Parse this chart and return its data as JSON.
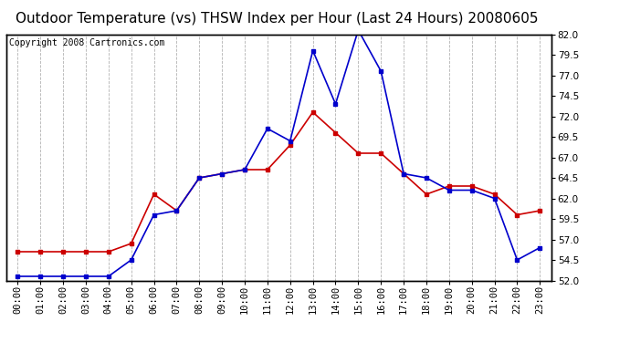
{
  "title": "Outdoor Temperature (vs) THSW Index per Hour (Last 24 Hours) 20080605",
  "copyright": "Copyright 2008 Cartronics.com",
  "hours": [
    "00:00",
    "01:00",
    "02:00",
    "03:00",
    "04:00",
    "05:00",
    "06:00",
    "07:00",
    "08:00",
    "09:00",
    "10:00",
    "11:00",
    "12:00",
    "13:00",
    "14:00",
    "15:00",
    "16:00",
    "17:00",
    "18:00",
    "19:00",
    "20:00",
    "21:00",
    "22:00",
    "23:00"
  ],
  "temp": [
    55.5,
    55.5,
    55.5,
    55.5,
    55.5,
    56.5,
    62.5,
    60.5,
    64.5,
    65.0,
    65.5,
    65.5,
    68.5,
    72.5,
    70.0,
    67.5,
    67.5,
    65.0,
    62.5,
    63.5,
    63.5,
    62.5,
    60.0,
    60.5
  ],
  "thsw": [
    52.5,
    52.5,
    52.5,
    52.5,
    52.5,
    54.5,
    60.0,
    60.5,
    64.5,
    65.0,
    65.5,
    70.5,
    69.0,
    80.0,
    73.5,
    82.5,
    77.5,
    65.0,
    64.5,
    63.0,
    63.0,
    62.0,
    54.5,
    56.0
  ],
  "ylim": [
    52.0,
    82.0
  ],
  "yticks": [
    52.0,
    54.5,
    57.0,
    59.5,
    62.0,
    64.5,
    67.0,
    69.5,
    72.0,
    74.5,
    77.0,
    79.5,
    82.0
  ],
  "bg_color": "#ffffff",
  "plot_bg_color": "#ffffff",
  "grid_color": "#aaaaaa",
  "temp_color": "#cc0000",
  "thsw_color": "#0000cc",
  "title_color": "#000000",
  "border_color": "#000000",
  "title_fontsize": 11,
  "copyright_fontsize": 7,
  "tick_fontsize": 7.5,
  "marker": "s",
  "markersize": 3.5,
  "linewidth": 1.2
}
